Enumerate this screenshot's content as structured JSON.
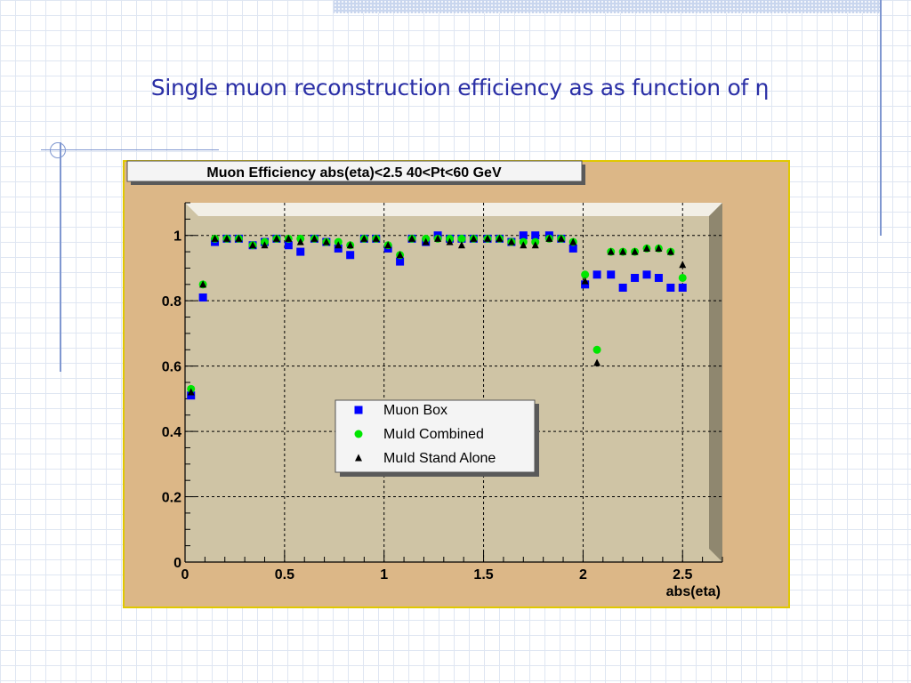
{
  "slide": {
    "title": "Single muon reconstruction efficiency as as function of η"
  },
  "colors": {
    "title_text": "#2a2fa6",
    "canvas_background": "#dcb787",
    "plot_frame": "#cfc4a5",
    "muon_box": "#0000ff",
    "muid_combined": "#00e600",
    "muid_stand_alone": "#000000"
  },
  "chart_data": {
    "type": "scatter",
    "title": "Muon Efficiency abs(eta)<2.5 40<Pt<60 GeV",
    "xlabel": "abs(eta)",
    "ylabel": "",
    "xlim": [
      0,
      2.7
    ],
    "ylim": [
      0,
      1.1
    ],
    "xticks": [
      "0",
      "0.5",
      "1",
      "1.5",
      "2",
      "2.5"
    ],
    "yticks": [
      "0",
      "0.2",
      "0.4",
      "0.6",
      "0.8",
      "1"
    ],
    "grid": true,
    "legend_position": "center",
    "series": [
      {
        "name": "Muon Box",
        "marker": "square",
        "color": "#0000ff",
        "points": [
          [
            0.03,
            0.51
          ],
          [
            0.09,
            0.81
          ],
          [
            0.15,
            0.98
          ],
          [
            0.21,
            0.99
          ],
          [
            0.27,
            0.99
          ],
          [
            0.34,
            0.97
          ],
          [
            0.4,
            0.98
          ],
          [
            0.46,
            0.99
          ],
          [
            0.52,
            0.97
          ],
          [
            0.58,
            0.95
          ],
          [
            0.65,
            0.99
          ],
          [
            0.71,
            0.98
          ],
          [
            0.77,
            0.96
          ],
          [
            0.83,
            0.94
          ],
          [
            0.9,
            0.99
          ],
          [
            0.96,
            0.99
          ],
          [
            1.02,
            0.96
          ],
          [
            1.08,
            0.92
          ],
          [
            1.14,
            0.99
          ],
          [
            1.21,
            0.98
          ],
          [
            1.27,
            1.0
          ],
          [
            1.33,
            0.99
          ],
          [
            1.39,
            0.99
          ],
          [
            1.45,
            0.99
          ],
          [
            1.52,
            0.99
          ],
          [
            1.58,
            0.99
          ],
          [
            1.64,
            0.98
          ],
          [
            1.7,
            1.0
          ],
          [
            1.76,
            1.0
          ],
          [
            1.83,
            1.0
          ],
          [
            1.89,
            0.99
          ],
          [
            1.95,
            0.96
          ],
          [
            2.01,
            0.85
          ],
          [
            2.07,
            0.88
          ],
          [
            2.14,
            0.88
          ],
          [
            2.2,
            0.84
          ],
          [
            2.26,
            0.87
          ],
          [
            2.32,
            0.88
          ],
          [
            2.38,
            0.87
          ],
          [
            2.44,
            0.84
          ],
          [
            2.5,
            0.84
          ]
        ]
      },
      {
        "name": "MuId Combined",
        "marker": "circle",
        "color": "#00e600",
        "points": [
          [
            0.03,
            0.53
          ],
          [
            0.09,
            0.85
          ],
          [
            0.15,
            0.99
          ],
          [
            0.21,
            0.99
          ],
          [
            0.27,
            0.99
          ],
          [
            0.34,
            0.97
          ],
          [
            0.4,
            0.98
          ],
          [
            0.46,
            0.99
          ],
          [
            0.52,
            0.99
          ],
          [
            0.58,
            0.99
          ],
          [
            0.65,
            0.99
          ],
          [
            0.71,
            0.98
          ],
          [
            0.77,
            0.98
          ],
          [
            0.83,
            0.97
          ],
          [
            0.9,
            0.99
          ],
          [
            0.96,
            0.99
          ],
          [
            1.02,
            0.97
          ],
          [
            1.08,
            0.94
          ],
          [
            1.14,
            0.99
          ],
          [
            1.21,
            0.99
          ],
          [
            1.27,
            0.99
          ],
          [
            1.33,
            0.99
          ],
          [
            1.39,
            0.99
          ],
          [
            1.45,
            0.99
          ],
          [
            1.52,
            0.99
          ],
          [
            1.58,
            0.99
          ],
          [
            1.64,
            0.98
          ],
          [
            1.7,
            0.98
          ],
          [
            1.76,
            0.98
          ],
          [
            1.83,
            0.99
          ],
          [
            1.89,
            0.99
          ],
          [
            1.95,
            0.98
          ],
          [
            2.01,
            0.88
          ],
          [
            2.07,
            0.65
          ],
          [
            2.14,
            0.95
          ],
          [
            2.2,
            0.95
          ],
          [
            2.26,
            0.95
          ],
          [
            2.32,
            0.96
          ],
          [
            2.38,
            0.96
          ],
          [
            2.44,
            0.95
          ],
          [
            2.5,
            0.87
          ]
        ]
      },
      {
        "name": "MuId Stand Alone",
        "marker": "triangle",
        "color": "#000000",
        "points": [
          [
            0.03,
            0.52
          ],
          [
            0.09,
            0.85
          ],
          [
            0.15,
            0.99
          ],
          [
            0.21,
            0.99
          ],
          [
            0.27,
            0.99
          ],
          [
            0.34,
            0.97
          ],
          [
            0.4,
            0.97
          ],
          [
            0.46,
            0.99
          ],
          [
            0.52,
            0.99
          ],
          [
            0.58,
            0.98
          ],
          [
            0.65,
            0.99
          ],
          [
            0.71,
            0.98
          ],
          [
            0.77,
            0.97
          ],
          [
            0.83,
            0.97
          ],
          [
            0.9,
            0.99
          ],
          [
            0.96,
            0.99
          ],
          [
            1.02,
            0.97
          ],
          [
            1.08,
            0.94
          ],
          [
            1.14,
            0.99
          ],
          [
            1.21,
            0.98
          ],
          [
            1.27,
            0.99
          ],
          [
            1.33,
            0.98
          ],
          [
            1.39,
            0.97
          ],
          [
            1.45,
            0.99
          ],
          [
            1.52,
            0.99
          ],
          [
            1.58,
            0.99
          ],
          [
            1.64,
            0.98
          ],
          [
            1.7,
            0.97
          ],
          [
            1.76,
            0.97
          ],
          [
            1.83,
            0.99
          ],
          [
            1.89,
            0.99
          ],
          [
            1.95,
            0.98
          ],
          [
            2.01,
            0.86
          ],
          [
            2.07,
            0.61
          ],
          [
            2.14,
            0.95
          ],
          [
            2.2,
            0.95
          ],
          [
            2.26,
            0.95
          ],
          [
            2.32,
            0.96
          ],
          [
            2.38,
            0.96
          ],
          [
            2.44,
            0.95
          ],
          [
            2.5,
            0.91
          ]
        ]
      }
    ]
  }
}
